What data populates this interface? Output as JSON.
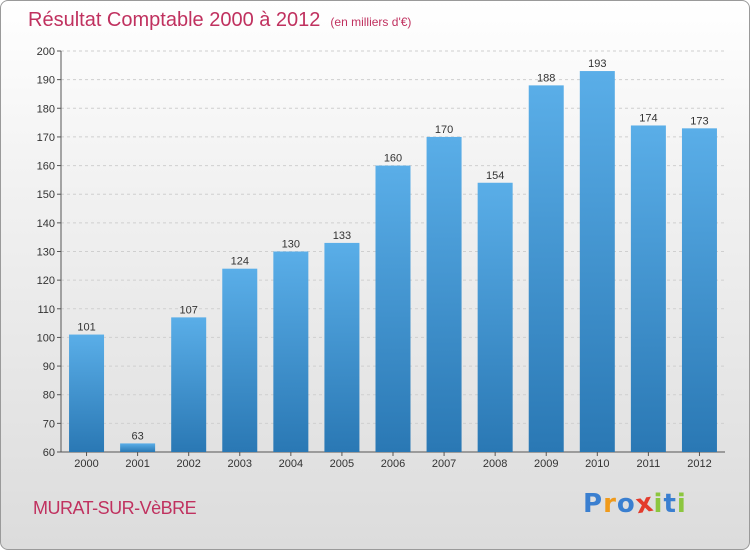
{
  "title": "Résultat Comptable 2000 à 2012",
  "subtitle": "(en milliers d'€)",
  "commune": "MURAT-SUR-VèBRE",
  "logo": {
    "letters": [
      "P",
      "r",
      "o",
      "x",
      "i",
      "t",
      "i"
    ],
    "colors": [
      "#3a7fd0",
      "#f09a1a",
      "#3a7fd0",
      "#e33b2c",
      "#8cc63f",
      "#3a7fd0",
      "#8cc63f"
    ]
  },
  "colors": {
    "bar_top": "#5aaee8",
    "bar_bottom": "#2a78b4",
    "title": "#c0315f"
  },
  "chart_data": {
    "type": "bar",
    "title": "Résultat Comptable 2000 à 2012",
    "categories": [
      "2000",
      "2001",
      "2002",
      "2003",
      "2004",
      "2005",
      "2006",
      "2007",
      "2008",
      "2009",
      "2010",
      "2011",
      "2012"
    ],
    "values": [
      101,
      63,
      107,
      124,
      130,
      133,
      160,
      170,
      154,
      188,
      193,
      174,
      173
    ],
    "ylim": [
      60,
      200
    ],
    "yticks": [
      60,
      70,
      80,
      90,
      100,
      110,
      120,
      130,
      140,
      150,
      160,
      170,
      180,
      190,
      200
    ],
    "grid": true,
    "xlabel": "",
    "ylabel": ""
  }
}
